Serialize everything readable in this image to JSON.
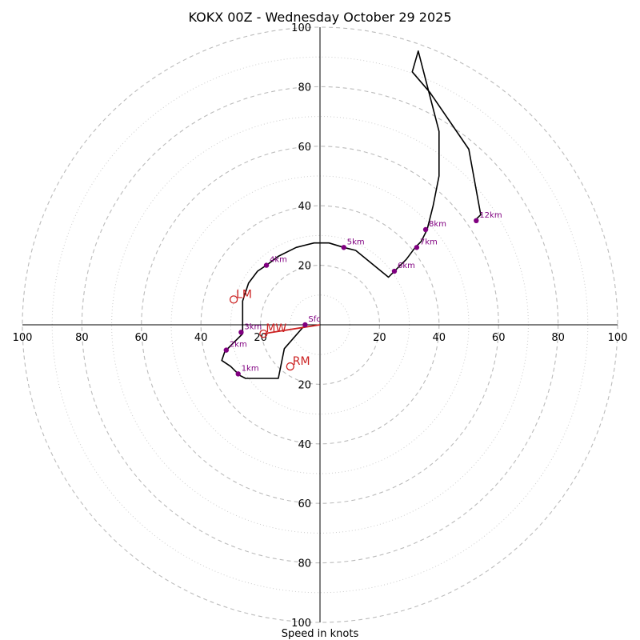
{
  "chart_data": {
    "type": "hodograph",
    "title": "KOKX 00Z - Wednesday October 29 2025",
    "xlabel": "Speed in knots",
    "max_speed": 100,
    "major_rings": [
      20,
      40,
      60,
      80,
      100
    ],
    "minor_rings": [
      10,
      30,
      50,
      70,
      90
    ],
    "axis_ticks": {
      "left": [
        "100",
        "80",
        "60",
        "40",
        "20"
      ],
      "right": [
        "20",
        "40",
        "60",
        "80",
        "100"
      ],
      "top": [
        "20",
        "40",
        "60",
        "80",
        "100"
      ],
      "bottom": [
        "20",
        "40",
        "60",
        "80",
        "100"
      ]
    },
    "tick_values": [
      20,
      40,
      60,
      80,
      100
    ],
    "trace": [
      [
        -5,
        0
      ],
      [
        -12,
        -8
      ],
      [
        -14,
        -18
      ],
      [
        -25,
        -18
      ],
      [
        -27,
        -17
      ],
      [
        -30,
        -14
      ],
      [
        -33,
        -12
      ],
      [
        -32,
        -9
      ],
      [
        -29,
        -6
      ],
      [
        -26,
        -3
      ],
      [
        -26,
        2
      ],
      [
        -26,
        8
      ],
      [
        -24,
        14
      ],
      [
        -21,
        18
      ],
      [
        -18,
        20
      ],
      [
        -14,
        23
      ],
      [
        -8,
        26
      ],
      [
        -2,
        27.5
      ],
      [
        3,
        27.5
      ],
      [
        8,
        26
      ],
      [
        12,
        25
      ],
      [
        23,
        16
      ],
      [
        25,
        18
      ],
      [
        29,
        22
      ],
      [
        32,
        26
      ],
      [
        34,
        28
      ],
      [
        36,
        32
      ],
      [
        38,
        40
      ],
      [
        40,
        50
      ],
      [
        40,
        65
      ],
      [
        33,
        92
      ],
      [
        31,
        85
      ],
      [
        37,
        78
      ],
      [
        50,
        59
      ],
      [
        54,
        37
      ],
      [
        52,
        35
      ]
    ],
    "height_markers": [
      {
        "label": "Sfc",
        "u": -5,
        "v": 0
      },
      {
        "label": "1km",
        "u": -27.5,
        "v": -16.5
      },
      {
        "label": "2km",
        "u": -31.5,
        "v": -8.5
      },
      {
        "label": "3km",
        "u": -26.5,
        "v": -2.5
      },
      {
        "label": "4km",
        "u": -18,
        "v": 20
      },
      {
        "label": "5km",
        "u": 8,
        "v": 26
      },
      {
        "label": "6km",
        "u": 25,
        "v": 18
      },
      {
        "label": "7km",
        "u": 32.5,
        "v": 26
      },
      {
        "label": "8km",
        "u": 35.5,
        "v": 32
      },
      {
        "label": "12km",
        "u": 52.5,
        "v": 35
      }
    ],
    "storm_motion": [
      {
        "label": "LM",
        "u": -29,
        "v": 8.5
      },
      {
        "label": "MW",
        "u": -19,
        "v": -3
      },
      {
        "label": "RM",
        "u": -10,
        "v": -14
      }
    ],
    "shear_vector": {
      "from": [
        0,
        0
      ],
      "to": [
        -19,
        -3
      ]
    }
  },
  "colors": {
    "trace": "#000000",
    "marker": "#800080",
    "storm": "#cc2222",
    "ring": "#bbbbbb",
    "axis": "#000000"
  }
}
